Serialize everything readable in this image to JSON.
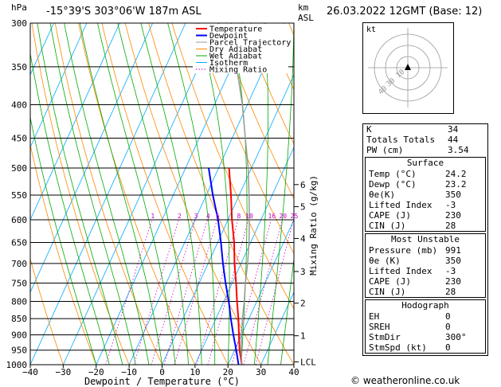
{
  "header": {
    "hpa_label": "hPa",
    "location": "-15°39'S  303°06'W  187m  ASL",
    "km_label": "km",
    "asl_label": "ASL",
    "datetime": "26.03.2022  12GMT  (Base: 12)"
  },
  "legend": {
    "items": [
      {
        "label": "Temperature",
        "color": "#ff0000"
      },
      {
        "label": "Dewpoint",
        "color": "#0000ff"
      },
      {
        "label": "Parcel Trajectory",
        "color": "#999999"
      },
      {
        "label": "Dry Adiabat",
        "color": "#ff8800"
      },
      {
        "label": "Wet Adiabat",
        "color": "#00aa00"
      },
      {
        "label": "Isotherm",
        "color": "#00aaff"
      },
      {
        "label": "Mixing Ratio",
        "color": "#cc00cc"
      }
    ]
  },
  "chart_data": {
    "type": "line",
    "xlabel": "Dewpoint / Temperature (°C)",
    "ylabel_right": "Mixing Ratio (g/kg)",
    "x_ticks": [
      -40,
      -30,
      -20,
      -10,
      0,
      10,
      20,
      30,
      40
    ],
    "pressure_levels": [
      300,
      350,
      400,
      450,
      500,
      550,
      600,
      650,
      700,
      750,
      800,
      850,
      900,
      950,
      1000
    ],
    "xlim": [
      -40,
      40
    ],
    "ylim_hpa": [
      1000,
      300
    ],
    "km_ticks": [
      {
        "label": "LCL",
        "p": 990
      },
      {
        "label": "1",
        "p": 903
      },
      {
        "label": "2",
        "p": 805
      },
      {
        "label": "3",
        "p": 720
      },
      {
        "label": "4",
        "p": 641
      },
      {
        "label": "5",
        "p": 573
      },
      {
        "label": "6",
        "p": 530
      }
    ],
    "mixing_ratio_labels": [
      "1",
      "2",
      "3",
      "4",
      "5",
      "8",
      "10",
      "16",
      "20",
      "25"
    ],
    "mixing_ratio_values": [
      1,
      2,
      3,
      4,
      5,
      8,
      10,
      16,
      20,
      25
    ],
    "series": [
      {
        "name": "Temperature",
        "p": [
          1000,
          950,
          900,
          850,
          800,
          750,
          700,
          650,
          600,
          550,
          500
        ],
        "t": [
          24.2,
          21.5,
          19.2,
          16.8,
          14.0,
          11.2,
          8.0,
          5.0,
          1.2,
          -2.5,
          -6.8
        ]
      },
      {
        "name": "Dewpoint",
        "p": [
          1000,
          950,
          900,
          850,
          800,
          750,
          700,
          650,
          600,
          550,
          500
        ],
        "t": [
          23.2,
          20.5,
          17.5,
          14.5,
          11.5,
          8.0,
          4.5,
          1.0,
          -3.0,
          -8.0,
          -13.0
        ]
      },
      {
        "name": "Parcel Trajectory",
        "p": [
          1000,
          950,
          900,
          850,
          800,
          750,
          700,
          650,
          600,
          550,
          500,
          450,
          400,
          350
        ],
        "t": [
          24.2,
          22.0,
          20.0,
          18.0,
          16.2,
          14.0,
          12.0,
          9.5,
          6.5,
          3.0,
          -1.0,
          -6.0,
          -11.5,
          -18.5
        ]
      }
    ]
  },
  "hodograph": {
    "label": "kt",
    "ring_labels": [
      "40",
      "30",
      "10"
    ]
  },
  "indices": [
    {
      "label": "K",
      "value": "34"
    },
    {
      "label": "Totals Totals",
      "value": "44"
    },
    {
      "label": "PW (cm)",
      "value": "3.54"
    }
  ],
  "surface": {
    "title": "Surface",
    "rows": [
      {
        "label": "Temp (°C)",
        "value": "24.2"
      },
      {
        "label": "Dewp (°C)",
        "value": "23.2"
      },
      {
        "label": "θe(K)",
        "value": "350"
      },
      {
        "label": "Lifted Index",
        "value": "-3"
      },
      {
        "label": "CAPE (J)",
        "value": "230"
      },
      {
        "label": "CIN (J)",
        "value": "28"
      }
    ]
  },
  "most_unstable": {
    "title": "Most Unstable",
    "rows": [
      {
        "label": "Pressure (mb)",
        "value": "991"
      },
      {
        "label": "θe (K)",
        "value": "350"
      },
      {
        "label": "Lifted Index",
        "value": "-3"
      },
      {
        "label": "CAPE (J)",
        "value": "230"
      },
      {
        "label": "CIN (J)",
        "value": "28"
      }
    ]
  },
  "hodograph_table": {
    "title": "Hodograph",
    "rows": [
      {
        "label": "EH",
        "value": "0"
      },
      {
        "label": "SREH",
        "value": "0"
      },
      {
        "label": "StmDir",
        "value": "300°"
      },
      {
        "label": "StmSpd (kt)",
        "value": "0"
      }
    ]
  },
  "footer": "© weatheronline.co.uk"
}
